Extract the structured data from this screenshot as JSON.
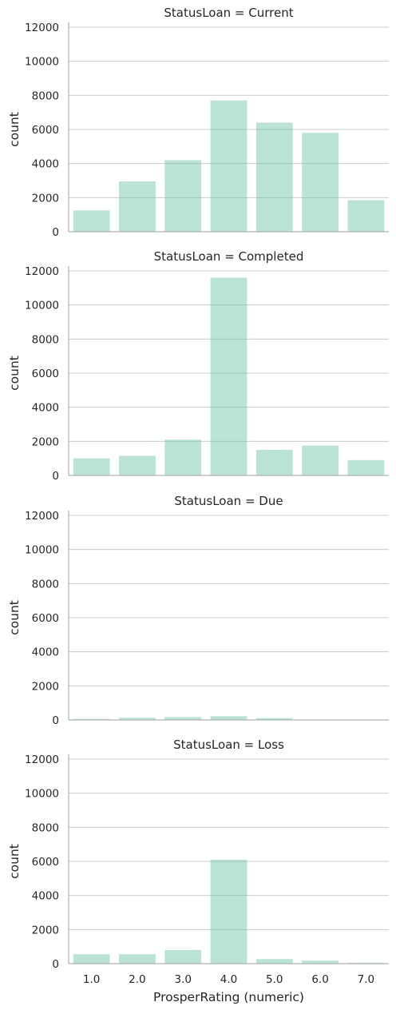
{
  "chart_data": {
    "type": "bar",
    "categories": [
      "1.0",
      "2.0",
      "3.0",
      "4.0",
      "5.0",
      "6.0",
      "7.0"
    ],
    "xlabel": "ProsperRating (numeric)",
    "ylabel": "count",
    "ylim": [
      0,
      12000
    ],
    "yticks": [
      0,
      2000,
      4000,
      6000,
      8000,
      10000,
      12000
    ],
    "grid": "horizontal",
    "bar_color": "#66c2a5",
    "panels": [
      {
        "title": "StatusLoan = Current",
        "values": [
          1250,
          2950,
          4200,
          7700,
          6400,
          5800,
          1850
        ]
      },
      {
        "title": "StatusLoan = Completed",
        "values": [
          1000,
          1150,
          2100,
          11600,
          1500,
          1750,
          900
        ]
      },
      {
        "title": "StatusLoan = Due",
        "values": [
          60,
          130,
          170,
          220,
          110,
          20,
          10
        ]
      },
      {
        "title": "StatusLoan = Loss",
        "values": [
          550,
          550,
          800,
          6100,
          270,
          180,
          50
        ]
      }
    ]
  }
}
